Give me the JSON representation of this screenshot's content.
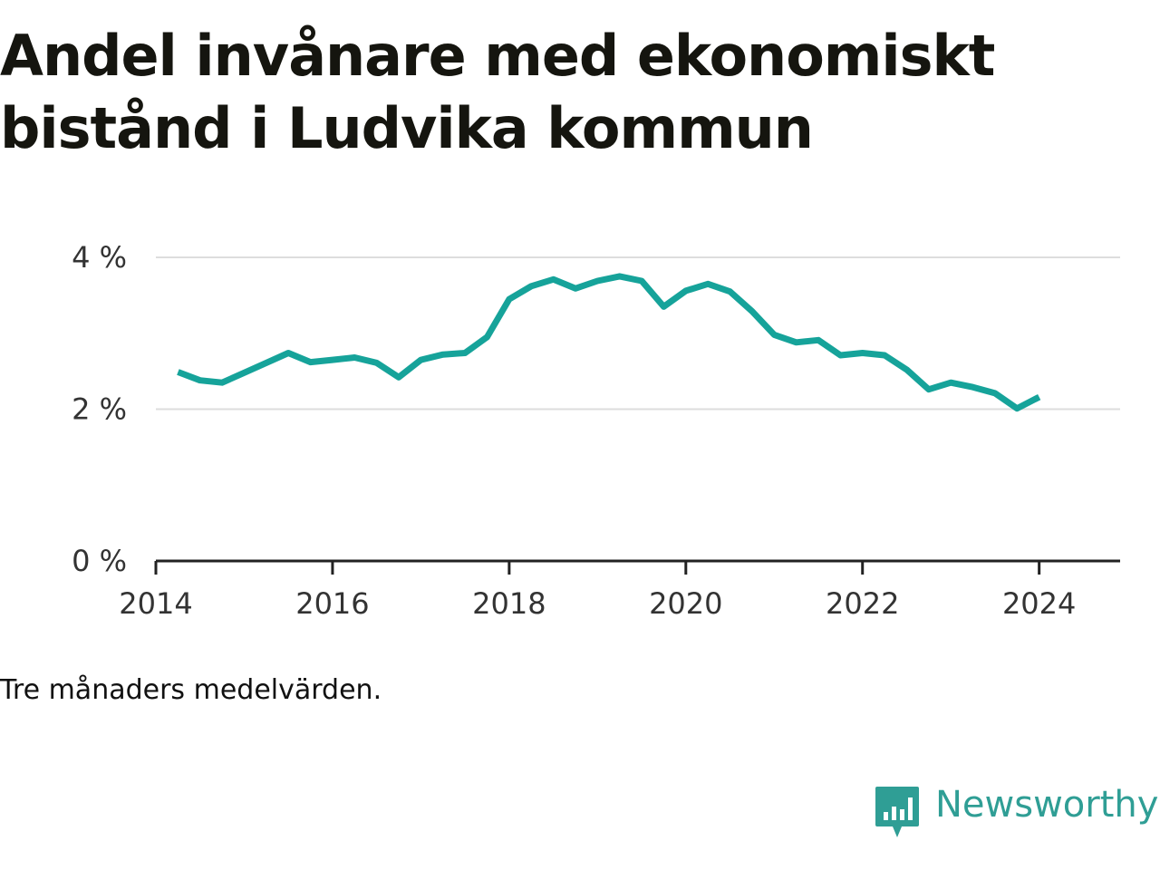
{
  "title": "Andel invånare med ekonomiskt bistånd i Ludvika kommun",
  "note": "Tre månaders medelvärden.",
  "brand": {
    "name": "Newsworthy",
    "icon": "newsworthy-logo-icon",
    "color": "#2f9e95"
  },
  "chart_data": {
    "type": "line",
    "title": "Andel invånare med ekonomiskt bistånd i Ludvika kommun",
    "xlabel": "",
    "ylabel": "",
    "xlim": [
      "2014-01",
      "2024-12"
    ],
    "ylim": [
      0,
      4
    ],
    "y_ticks": [
      {
        "value": 0,
        "label": "0 %"
      },
      {
        "value": 2,
        "label": "2 %"
      },
      {
        "value": 4,
        "label": "4 %"
      }
    ],
    "x_ticks": [
      {
        "value": "2014-01",
        "label": "2014"
      },
      {
        "value": "2016-01",
        "label": "2016"
      },
      {
        "value": "2018-01",
        "label": "2018"
      },
      {
        "value": "2020-01",
        "label": "2020"
      },
      {
        "value": "2022-01",
        "label": "2022"
      },
      {
        "value": "2024-01",
        "label": "2024"
      }
    ],
    "grid": true,
    "legend": "none",
    "line_color": "#16a39a",
    "series": [
      {
        "x": [
          "2014-04",
          "2014-07",
          "2014-10",
          "2015-01",
          "2015-04",
          "2015-07",
          "2015-10",
          "2016-01",
          "2016-04",
          "2016-07",
          "2016-10",
          "2017-01",
          "2017-04",
          "2017-07",
          "2017-10",
          "2018-01",
          "2018-04",
          "2018-07",
          "2018-10",
          "2019-01",
          "2019-04",
          "2019-07",
          "2019-10",
          "2020-01",
          "2020-04",
          "2020-07",
          "2020-10",
          "2021-01",
          "2021-04",
          "2021-07",
          "2021-10",
          "2022-01",
          "2022-04",
          "2022-07",
          "2022-10",
          "2023-01",
          "2023-04",
          "2023-07",
          "2023-10",
          "2024-01"
        ],
        "values": [
          2.49,
          2.38,
          2.35,
          2.48,
          2.61,
          2.74,
          2.62,
          2.65,
          2.68,
          2.61,
          2.42,
          2.65,
          2.72,
          2.74,
          2.95,
          3.45,
          3.62,
          3.71,
          3.59,
          3.69,
          3.75,
          3.69,
          3.35,
          3.56,
          3.65,
          3.55,
          3.29,
          2.98,
          2.88,
          2.91,
          2.71,
          2.74,
          2.71,
          2.52,
          2.26,
          2.35,
          2.29,
          2.21,
          2.01,
          2.16
        ]
      }
    ]
  }
}
